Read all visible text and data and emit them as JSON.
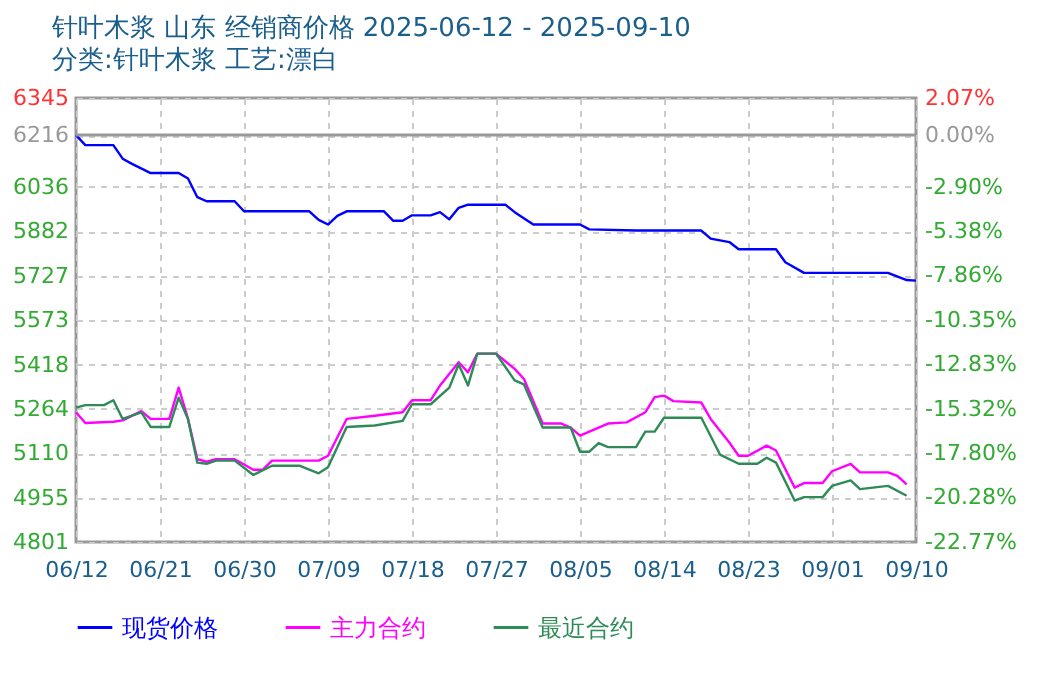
{
  "chart_data": {
    "type": "line",
    "title": "针叶木浆 山东 经销商价格 2025-06-12 - 2025-09-10",
    "subtitle": "分类:针叶木浆 工艺:漂白",
    "xlim": [
      "2025-06-12",
      "2025-09-10"
    ],
    "xticks": [
      {
        "value": "2025-06-12",
        "label": "06/12"
      },
      {
        "value": "2025-06-21",
        "label": "06/21"
      },
      {
        "value": "2025-06-30",
        "label": "06/30"
      },
      {
        "value": "2025-07-09",
        "label": "07/09"
      },
      {
        "value": "2025-07-18",
        "label": "07/18"
      },
      {
        "value": "2025-07-27",
        "label": "07/27"
      },
      {
        "value": "2025-08-05",
        "label": "08/05"
      },
      {
        "value": "2025-08-14",
        "label": "08/14"
      },
      {
        "value": "2025-08-23",
        "label": "08/23"
      },
      {
        "value": "2025-09-01",
        "label": "09/01"
      },
      {
        "value": "2025-09-10",
        "label": "09/10"
      }
    ],
    "ylim": [
      4801,
      6345
    ],
    "yticks": [
      4801,
      4955,
      5110,
      5264,
      5418,
      5573,
      5727,
      5882,
      6036,
      6216,
      6345
    ],
    "y2lim": [
      -22.77,
      2.07
    ],
    "y2ticks": [
      {
        "value": -22.77,
        "label": "-22.77%"
      },
      {
        "value": -20.28,
        "label": "-20.28%"
      },
      {
        "value": -17.8,
        "label": "-17.80%"
      },
      {
        "value": -15.32,
        "label": "-15.32%"
      },
      {
        "value": -12.83,
        "label": "-12.83%"
      },
      {
        "value": -10.35,
        "label": "-10.35%"
      },
      {
        "value": -7.86,
        "label": "-7.86%"
      },
      {
        "value": -5.38,
        "label": "-5.38%"
      },
      {
        "value": -2.9,
        "label": "-2.90%"
      },
      {
        "value": 0,
        "label": "0.00%"
      },
      {
        "value": 2.07,
        "label": "2.07%"
      }
    ],
    "ref_lines": [
      {
        "axis": "y",
        "value": 6216,
        "color": "#999999"
      }
    ],
    "grid": true,
    "legend": "bottom",
    "line_style": "solid",
    "series": [
      {
        "name": "现货价格",
        "color": "#0000ff",
        "x": [
          "2025-06-12",
          "2025-06-13",
          "2025-06-16",
          "2025-06-17",
          "2025-06-18",
          "2025-06-20",
          "2025-06-23",
          "2025-06-24",
          "2025-06-25",
          "2025-06-26",
          "2025-06-29",
          "2025-06-30",
          "2025-07-07",
          "2025-07-08",
          "2025-07-09",
          "2025-07-10",
          "2025-07-11",
          "2025-07-15",
          "2025-07-16",
          "2025-07-17",
          "2025-07-18",
          "2025-07-20",
          "2025-07-21",
          "2025-07-22",
          "2025-07-23",
          "2025-07-24",
          "2025-07-28",
          "2025-07-29",
          "2025-07-31",
          "2025-08-05",
          "2025-08-06",
          "2025-08-11",
          "2025-08-18",
          "2025-08-19",
          "2025-08-21",
          "2025-08-22",
          "2025-08-26",
          "2025-08-27",
          "2025-08-29",
          "2025-09-07",
          "2025-09-09",
          "2025-09-10"
        ],
        "values": [
          6216,
          6181,
          6181,
          6134,
          6116,
          6084,
          6084,
          6065,
          6000,
          5986,
          5986,
          5951,
          5951,
          5921,
          5905,
          5935,
          5951,
          5951,
          5918,
          5918,
          5937,
          5937,
          5948,
          5923,
          5963,
          5974,
          5974,
          5948,
          5905,
          5905,
          5888,
          5884,
          5884,
          5856,
          5844,
          5819,
          5819,
          5774,
          5737,
          5737,
          5712,
          5710
        ]
      },
      {
        "name": "主力合约",
        "color": "#ff00ff",
        "x": [
          "2025-06-12",
          "2025-06-13",
          "2025-06-16",
          "2025-06-17",
          "2025-06-19",
          "2025-06-20",
          "2025-06-22",
          "2025-06-23",
          "2025-06-24",
          "2025-06-25",
          "2025-06-26",
          "2025-06-27",
          "2025-06-29",
          "2025-07-01",
          "2025-07-02",
          "2025-07-03",
          "2025-07-08",
          "2025-07-09",
          "2025-07-11",
          "2025-07-14",
          "2025-07-17",
          "2025-07-18",
          "2025-07-20",
          "2025-07-21",
          "2025-07-23",
          "2025-07-24",
          "2025-07-25",
          "2025-07-27",
          "2025-07-29",
          "2025-07-30",
          "2025-08-01",
          "2025-08-03",
          "2025-08-04",
          "2025-08-05",
          "2025-08-08",
          "2025-08-10",
          "2025-08-12",
          "2025-08-13",
          "2025-08-14",
          "2025-08-15",
          "2025-08-18",
          "2025-08-19",
          "2025-08-21",
          "2025-08-22",
          "2025-08-23",
          "2025-08-25",
          "2025-08-26",
          "2025-08-28",
          "2025-08-29",
          "2025-08-31",
          "2025-09-01",
          "2025-09-03",
          "2025-09-04",
          "2025-09-07",
          "2025-09-08",
          "2025-09-09"
        ],
        "values": [
          5252,
          5215,
          5219,
          5224,
          5256,
          5229,
          5229,
          5338,
          5229,
          5089,
          5080,
          5089,
          5089,
          5052,
          5052,
          5084,
          5084,
          5101,
          5229,
          5240,
          5252,
          5294,
          5294,
          5345,
          5426,
          5391,
          5456,
          5456,
          5403,
          5368,
          5213,
          5213,
          5199,
          5171,
          5213,
          5217,
          5252,
          5305,
          5310,
          5291,
          5286,
          5229,
          5147,
          5101,
          5101,
          5136,
          5119,
          4990,
          5006,
          5006,
          5047,
          5073,
          5043,
          5043,
          5031,
          5001
        ]
      },
      {
        "name": "最近合约",
        "color": "#2e8b57",
        "x": [
          "2025-06-12",
          "2025-06-13",
          "2025-06-15",
          "2025-06-16",
          "2025-06-17",
          "2025-06-19",
          "2025-06-20",
          "2025-06-22",
          "2025-06-23",
          "2025-06-24",
          "2025-06-25",
          "2025-06-26",
          "2025-06-27",
          "2025-06-29",
          "2025-07-01",
          "2025-07-03",
          "2025-07-06",
          "2025-07-08",
          "2025-07-09",
          "2025-07-11",
          "2025-07-14",
          "2025-07-17",
          "2025-07-18",
          "2025-07-20",
          "2025-07-22",
          "2025-07-23",
          "2025-07-24",
          "2025-07-25",
          "2025-07-27",
          "2025-07-29",
          "2025-07-30",
          "2025-08-01",
          "2025-08-04",
          "2025-08-05",
          "2025-08-06",
          "2025-08-07",
          "2025-08-08",
          "2025-08-11",
          "2025-08-12",
          "2025-08-13",
          "2025-08-14",
          "2025-08-18",
          "2025-08-20",
          "2025-08-22",
          "2025-08-24",
          "2025-08-25",
          "2025-08-26",
          "2025-08-28",
          "2025-08-29",
          "2025-08-31",
          "2025-09-01",
          "2025-09-03",
          "2025-09-04",
          "2025-09-07",
          "2025-09-09"
        ],
        "values": [
          5268,
          5277,
          5277,
          5294,
          5229,
          5252,
          5201,
          5201,
          5303,
          5229,
          5077,
          5073,
          5084,
          5084,
          5034,
          5066,
          5066,
          5040,
          5061,
          5201,
          5206,
          5222,
          5280,
          5280,
          5338,
          5419,
          5345,
          5456,
          5456,
          5363,
          5349,
          5199,
          5199,
          5115,
          5115,
          5145,
          5131,
          5131,
          5185,
          5185,
          5233,
          5233,
          5105,
          5073,
          5073,
          5094,
          5077,
          4945,
          4957,
          4957,
          4996,
          5015,
          4985,
          4996,
          4962
        ]
      }
    ]
  }
}
